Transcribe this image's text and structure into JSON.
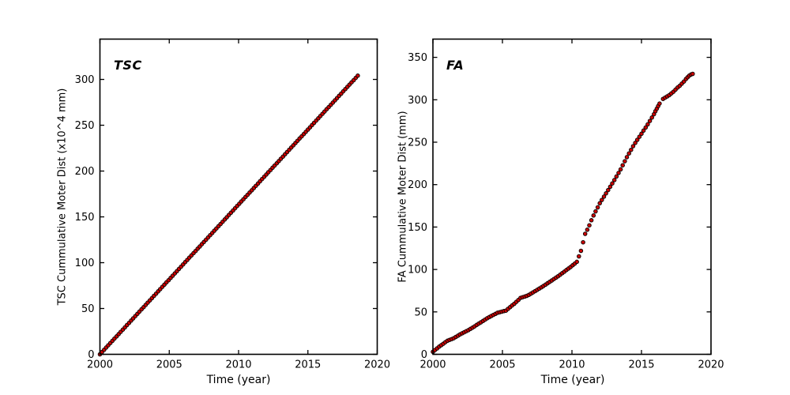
{
  "figure": {
    "background": "#ffffff",
    "axes_color": "#000000",
    "text_color": "#000000"
  },
  "chart_data": [
    {
      "type": "scatter",
      "panel": "left",
      "title": "TSC",
      "xlabel": "Time (year)",
      "ylabel": "TSC Cummulative Moter Dist (x10^4 mm)",
      "xlim": [
        2000,
        2020
      ],
      "ylim": [
        0,
        344
      ],
      "xticks": [
        2000,
        2005,
        2010,
        2015,
        2020
      ],
      "yticks": [
        0,
        50,
        100,
        150,
        200,
        250,
        300
      ],
      "grid": false,
      "legend": null,
      "marker": {
        "shape": "circle",
        "fill": "#cc0000",
        "edge": "#000000",
        "radius": 2.3
      },
      "segments": [
        {
          "x": [
            2000.0,
            2000.15,
            2000.3,
            2000.45,
            2000.6,
            2000.75,
            2000.9,
            2001.05,
            2001.2,
            2001.35,
            2001.5,
            2001.65,
            2001.8,
            2001.95,
            2002.1,
            2002.25,
            2002.4,
            2002.55,
            2002.7,
            2002.85,
            2003.0,
            2003.15,
            2003.3,
            2003.45,
            2003.6,
            2003.75,
            2003.9,
            2004.05,
            2004.2,
            2004.35,
            2004.5,
            2004.65,
            2004.8,
            2004.95,
            2005.1,
            2005.25,
            2005.4,
            2005.55,
            2005.7,
            2005.85,
            2006.0,
            2006.15,
            2006.3,
            2006.45,
            2006.6,
            2006.75,
            2006.9,
            2007.05,
            2007.2,
            2007.35,
            2007.5,
            2007.65,
            2007.8,
            2007.95,
            2008.1,
            2008.25,
            2008.4,
            2008.55,
            2008.7,
            2008.85,
            2009.0,
            2009.15,
            2009.3,
            2009.45,
            2009.6,
            2009.75,
            2009.9,
            2010.05,
            2010.2,
            2010.35,
            2010.5,
            2010.65,
            2010.8,
            2010.95,
            2011.1,
            2011.25,
            2011.4,
            2011.55,
            2011.7,
            2011.85,
            2012.0,
            2012.15,
            2012.3,
            2012.45,
            2012.6,
            2012.75,
            2012.9,
            2013.05,
            2013.2,
            2013.35,
            2013.5,
            2013.65,
            2013.8,
            2013.95,
            2014.1,
            2014.25,
            2014.4,
            2014.55,
            2014.7,
            2014.85,
            2015.0,
            2015.15,
            2015.3,
            2015.45,
            2015.6,
            2015.75,
            2015.9,
            2016.05,
            2016.2,
            2016.35,
            2016.5,
            2016.65,
            2016.8,
            2016.95,
            2017.1,
            2017.25,
            2017.4,
            2017.55,
            2017.7,
            2017.85,
            2018.0,
            2018.15,
            2018.3,
            2018.45,
            2018.6
          ],
          "y": [
            0.0,
            2.5,
            4.9,
            7.4,
            9.8,
            12.3,
            14.7,
            17.2,
            19.6,
            22.1,
            24.5,
            27.0,
            29.4,
            31.9,
            34.3,
            36.8,
            39.2,
            41.7,
            44.1,
            46.6,
            49.1,
            51.5,
            54.0,
            56.4,
            58.9,
            61.3,
            63.8,
            66.2,
            68.7,
            71.1,
            73.6,
            76.0,
            78.5,
            80.9,
            83.4,
            85.8,
            88.3,
            90.7,
            93.2,
            95.6,
            98.1,
            100.6,
            103.0,
            105.5,
            107.9,
            110.4,
            112.8,
            115.3,
            117.7,
            120.2,
            122.6,
            125.1,
            127.5,
            130.0,
            132.4,
            134.9,
            137.3,
            139.8,
            142.2,
            144.7,
            147.2,
            149.6,
            152.1,
            154.5,
            157.0,
            159.4,
            161.9,
            164.3,
            166.8,
            169.2,
            171.7,
            174.1,
            176.6,
            179.0,
            181.5,
            183.9,
            186.4,
            188.9,
            191.3,
            193.8,
            196.2,
            198.7,
            201.1,
            203.6,
            206.0,
            208.5,
            210.9,
            213.4,
            215.8,
            218.3,
            220.7,
            223.2,
            225.7,
            228.1,
            230.6,
            233.0,
            235.5,
            237.9,
            240.4,
            242.8,
            245.3,
            247.7,
            250.2,
            252.6,
            255.1,
            257.5,
            260.0,
            262.4,
            264.9,
            267.4,
            269.8,
            272.3,
            274.7,
            277.2,
            279.6,
            282.1,
            284.5,
            287.0,
            289.4,
            291.9,
            294.3,
            296.8,
            299.2,
            301.7,
            304.1
          ]
        }
      ]
    },
    {
      "type": "scatter",
      "panel": "right",
      "title": "FA",
      "xlabel": "Time (year)",
      "ylabel": "FA Cummulative Moter Dist (mm)",
      "xlim": [
        2000,
        2020
      ],
      "ylim": [
        0,
        371.5
      ],
      "xticks": [
        2000,
        2005,
        2010,
        2015,
        2020
      ],
      "yticks": [
        0,
        50,
        100,
        150,
        200,
        250,
        300,
        350
      ],
      "grid": false,
      "legend": null,
      "marker": {
        "shape": "circle",
        "fill": "#cc0000",
        "edge": "#000000",
        "radius": 2.3
      },
      "segments": [
        {
          "x": [
            2000.0,
            2000.15,
            2000.3,
            2000.45,
            2000.6,
            2000.75,
            2000.9,
            2001.05,
            2001.2,
            2001.35,
            2001.5,
            2001.65,
            2001.8,
            2001.95,
            2002.1,
            2002.25,
            2002.4,
            2002.55,
            2002.7,
            2002.85,
            2003.0,
            2003.15,
            2003.3,
            2003.45,
            2003.6,
            2003.75,
            2003.9,
            2004.05,
            2004.2,
            2004.35,
            2004.5,
            2004.65,
            2004.8,
            2004.95,
            2005.1,
            2005.25,
            2005.4,
            2005.55,
            2005.7,
            2005.85,
            2006.0,
            2006.15,
            2006.3,
            2006.45,
            2006.6,
            2006.75,
            2006.9,
            2007.05,
            2007.2,
            2007.35,
            2007.5,
            2007.65,
            2007.8,
            2007.95,
            2008.1,
            2008.25,
            2008.4,
            2008.55,
            2008.7,
            2008.85,
            2009.0,
            2009.15,
            2009.3,
            2009.45,
            2009.6,
            2009.75,
            2009.9,
            2010.05,
            2010.2,
            2010.35,
            2010.5,
            2010.65,
            2010.8,
            2010.95,
            2011.1,
            2011.25,
            2011.4,
            2011.55,
            2011.7,
            2011.85,
            2012.0,
            2012.15,
            2012.3,
            2012.45,
            2012.6,
            2012.75,
            2012.9,
            2013.05,
            2013.2,
            2013.35,
            2013.5,
            2013.65,
            2013.8,
            2013.95,
            2014.1,
            2014.25,
            2014.4,
            2014.55,
            2014.7,
            2014.85,
            2015.0,
            2015.15,
            2015.3,
            2015.45,
            2015.6,
            2015.75,
            2015.9
          ],
          "y": [
            3.0,
            5.0,
            7.0,
            9.0,
            10.8,
            12.5,
            14.3,
            16.0,
            17.0,
            18.0,
            19.0,
            20.5,
            22.0,
            23.5,
            24.8,
            26.0,
            27.3,
            28.5,
            30.0,
            31.5,
            33.0,
            34.6,
            36.2,
            37.7,
            39.3,
            40.9,
            42.5,
            43.9,
            45.2,
            46.5,
            47.7,
            49.0,
            49.6,
            50.3,
            50.9,
            51.5,
            53.5,
            55.6,
            57.6,
            59.6,
            61.8,
            64.1,
            66.5,
            67.3,
            68.1,
            68.9,
            70.0,
            71.5,
            73.0,
            74.5,
            76.0,
            77.5,
            79.0,
            80.5,
            82.1,
            83.8,
            85.4,
            87.1,
            88.7,
            90.4,
            92.0,
            93.8,
            95.6,
            97.4,
            99.3,
            101.1,
            102.9,
            104.9,
            106.9,
            109.0,
            115.5,
            122.0,
            132.0,
            142.0,
            146.8,
            152.0,
            158.0,
            163.6,
            168.4,
            173.2,
            178.0,
            181.9,
            185.8,
            189.7,
            193.6,
            197.5,
            201.4,
            205.4,
            209.6,
            213.8,
            218.0,
            222.8,
            227.6,
            232.4,
            236.8,
            241.0,
            245.2,
            249.2,
            252.8,
            256.4,
            260.0,
            263.7,
            267.3,
            271.0,
            275.0,
            279.0,
            283.0
          ]
        },
        {
          "x": [
            2016.0,
            2016.1,
            2016.2,
            2016.3
          ],
          "y": [
            286.5,
            289.5,
            292.5,
            295.5
          ]
        },
        {
          "x": [
            2016.55,
            2016.7,
            2016.85,
            2017.0,
            2017.15,
            2017.3,
            2017.45,
            2017.6,
            2017.75,
            2017.9,
            2018.05,
            2018.2,
            2018.32,
            2018.44,
            2018.56,
            2018.68
          ],
          "y": [
            301.0,
            302.5,
            304.0,
            305.5,
            307.5,
            309.5,
            312.0,
            314.5,
            316.5,
            319.0,
            321.5,
            324.5,
            326.5,
            328.5,
            329.8,
            330.5
          ]
        }
      ]
    }
  ]
}
